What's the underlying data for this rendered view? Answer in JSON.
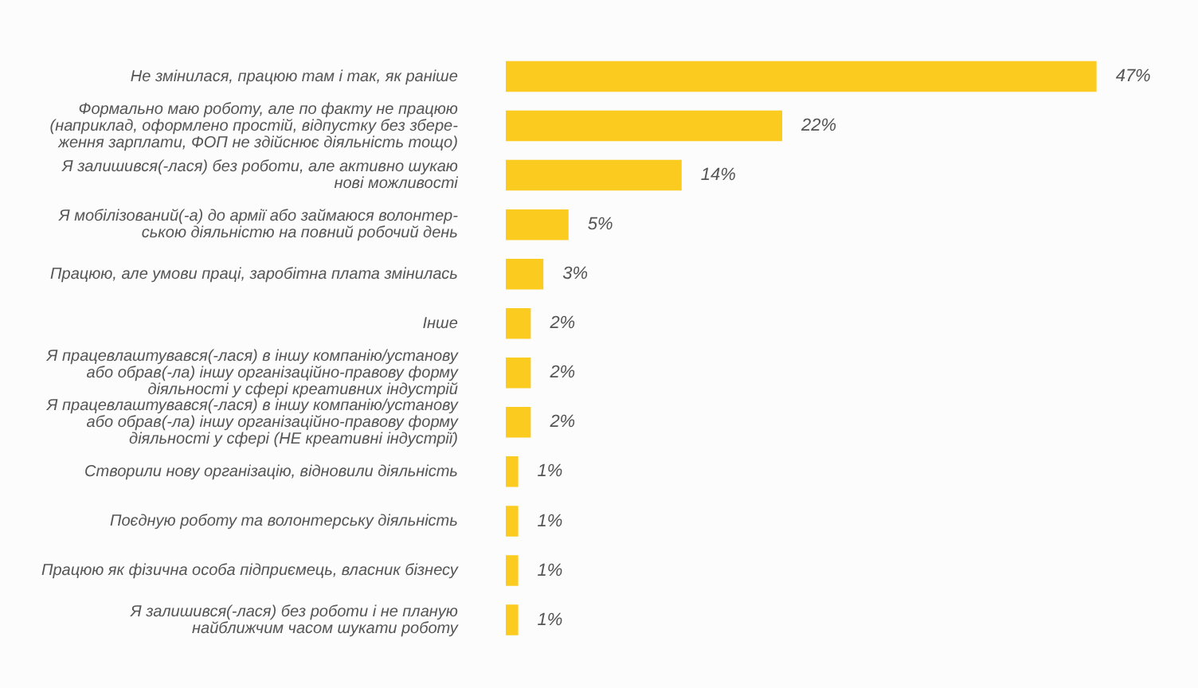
{
  "chart_data": {
    "type": "bar",
    "orientation": "horizontal",
    "categories": [
      "Не змінилася, працюю там і так, як раніше",
      "Формально маю роботу, але по факту не працюю\n(наприклад, оформлено простій, відпустку без збере-\nження зарплати, ФОП не здійснює діяльність тощо)",
      "Я залишився(-лася) без роботи, але активно шукаю\nнові можливості",
      "Я мобілізований(-а) до армії або займаюся волонтер-\nською діяльністю на повний робочий день",
      "Працюю, але умови праці, заробітна плата змінилась",
      "Інше",
      "Я працевлаштувався(-лася) в іншу компанію/установу\nабо обрав(-ла) іншу організаційно-правову форму\nдіяльності у сфері креативних індустрій",
      "Я працевлаштувався(-лася) в іншу компанію/установу\nабо обрав(-ла) іншу організаційно-правову форму\nдіяльності у сфері (НЕ креативні індустрії)",
      "Створили нову організацію, відновили діяльність",
      "Поєдную роботу та волонтерську діяльність",
      "Працюю як фізична особа підприємець, власник бізнесу",
      "Я залишився(-лася) без роботи і не планую\nнайближчим часом шукати роботу"
    ],
    "values": [
      47,
      22,
      14,
      5,
      3,
      2,
      2,
      2,
      1,
      1,
      1,
      1
    ],
    "value_labels": [
      "47%",
      "22%",
      "14%",
      "5%",
      "3%",
      "2%",
      "2%",
      "2%",
      "1%",
      "1%",
      "1%",
      "1%"
    ],
    "color": "#fccb1f",
    "tick_labels": "y",
    "legend": false
  }
}
